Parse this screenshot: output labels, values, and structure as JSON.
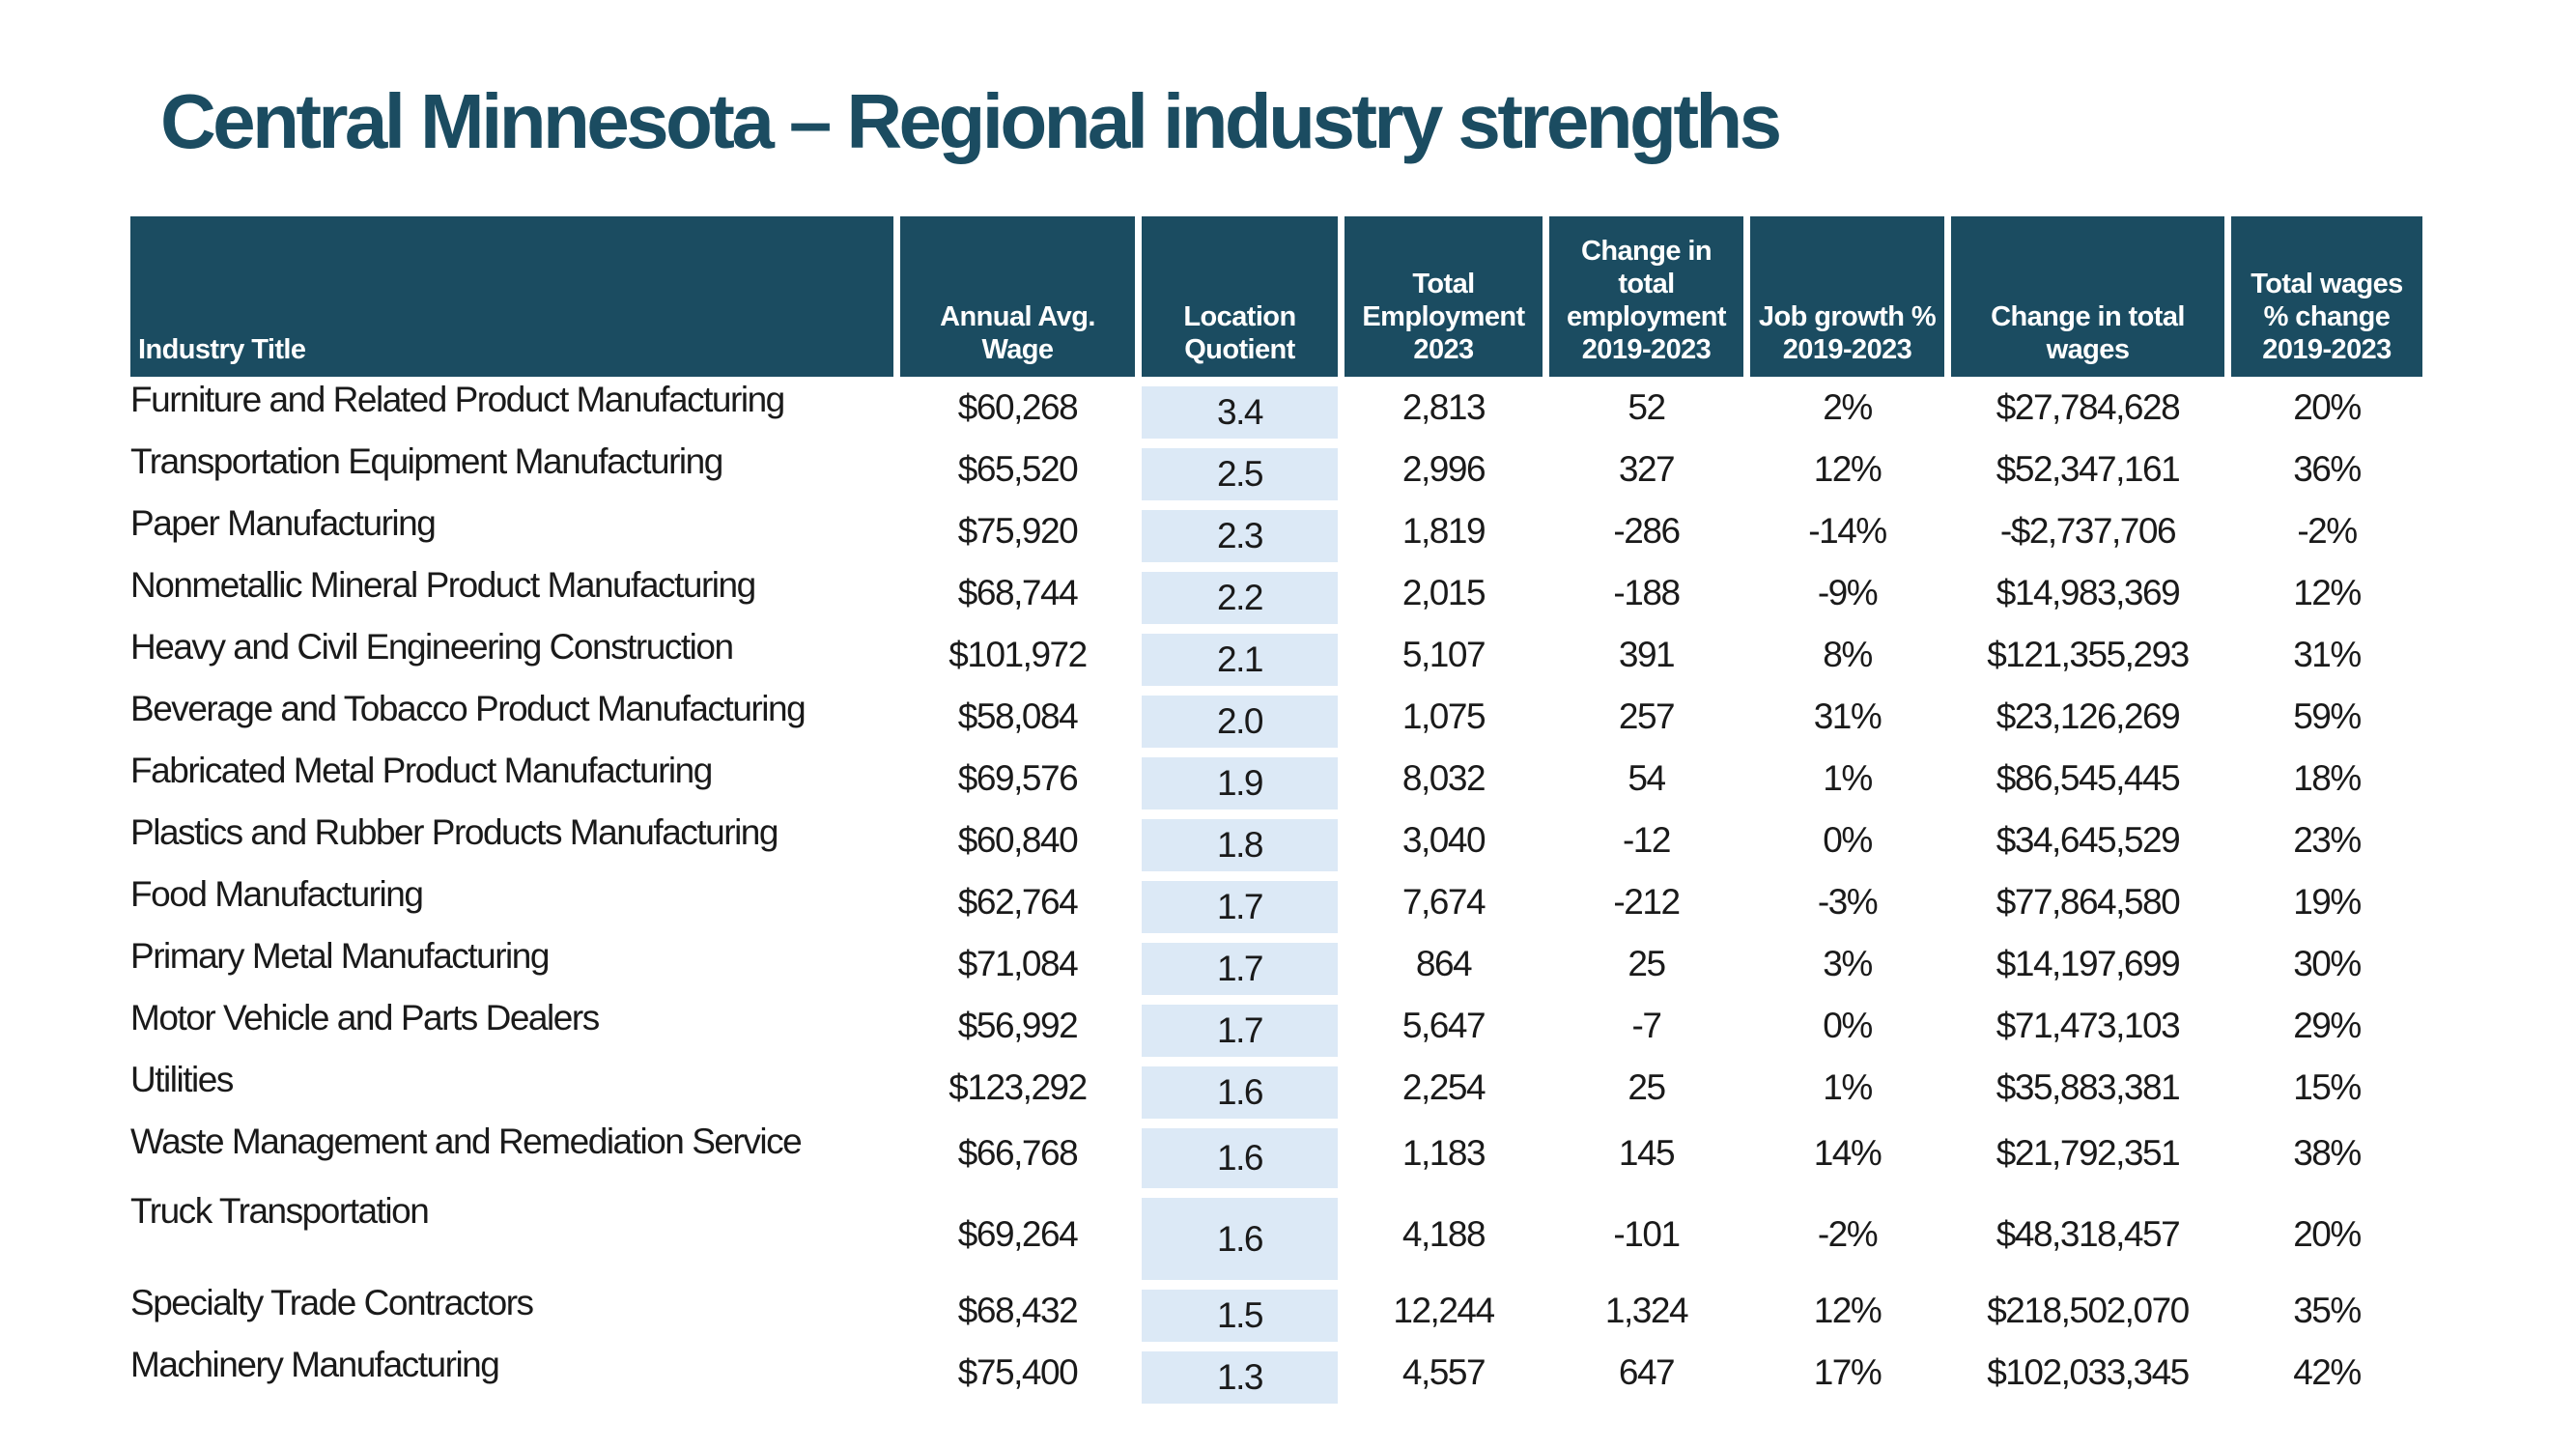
{
  "page": {
    "title": "Central Minnesota – Regional industry strengths"
  },
  "colors": {
    "header_background": "#1B4C61",
    "title_text": "#1B4C61",
    "header_text": "#FFFFFF",
    "highlight_column": "#DCE9F6",
    "body_text": "#1A1A1A"
  },
  "chart_data": {
    "type": "table",
    "title": "Central Minnesota – Regional industry strengths",
    "columns": [
      "Industry Title",
      "Annual Avg.\nWage",
      "Location\nQuotient",
      "Total\nEmployment\n2023",
      "Change in\ntotal\nemployment\n2019-2023",
      "Job growth %\n2019-2023",
      "Change in total\nwages",
      "Total wages\n% change\n2019-2023"
    ],
    "rows": [
      [
        "Furniture and Related Product Manufacturing",
        "$60,268",
        "3.4",
        "2,813",
        "52",
        "2%",
        "$27,784,628",
        "20%"
      ],
      [
        "Transportation Equipment Manufacturing",
        "$65,520",
        "2.5",
        "2,996",
        "327",
        "12%",
        "$52,347,161",
        "36%"
      ],
      [
        "Paper Manufacturing",
        "$75,920",
        "2.3",
        "1,819",
        "-286",
        "-14%",
        "-$2,737,706",
        "-2%"
      ],
      [
        "Nonmetallic Mineral Product Manufacturing",
        "$68,744",
        "2.2",
        "2,015",
        "-188",
        "-9%",
        "$14,983,369",
        "12%"
      ],
      [
        "Heavy and Civil Engineering Construction",
        "$101,972",
        "2.1",
        "5,107",
        "391",
        "8%",
        "$121,355,293",
        "31%"
      ],
      [
        "Beverage and Tobacco Product Manufacturing",
        "$58,084",
        "2.0",
        "1,075",
        "257",
        "31%",
        "$23,126,269",
        "59%"
      ],
      [
        "Fabricated Metal Product Manufacturing",
        "$69,576",
        "1.9",
        "8,032",
        "54",
        "1%",
        "$86,545,445",
        "18%"
      ],
      [
        "Plastics and Rubber Products Manufacturing",
        "$60,840",
        "1.8",
        "3,040",
        "-12",
        "0%",
        "$34,645,529",
        "23%"
      ],
      [
        "Food Manufacturing",
        "$62,764",
        "1.7",
        "7,674",
        "-212",
        "-3%",
        "$77,864,580",
        "19%"
      ],
      [
        "Primary Metal Manufacturing",
        "$71,084",
        "1.7",
        "864",
        "25",
        "3%",
        "$14,197,699",
        "30%"
      ],
      [
        "Motor Vehicle and Parts Dealers",
        "$56,992",
        "1.7",
        "5,647",
        "-7",
        "0%",
        "$71,473,103",
        "29%"
      ],
      [
        "Utilities",
        "$123,292",
        "1.6",
        "2,254",
        "25",
        "1%",
        "$35,883,381",
        "15%"
      ],
      [
        "Waste Management and Remediation Service",
        "$66,768",
        "1.6",
        "1,183",
        "145",
        "14%",
        "$21,792,351",
        "38%"
      ],
      [
        "Truck Transportation",
        "$69,264",
        "1.6",
        "4,188",
        "-101",
        "-2%",
        "$48,318,457",
        "20%"
      ],
      [
        "Specialty Trade Contractors",
        "$68,432",
        "1.5",
        "12,244",
        "1,324",
        "12%",
        "$218,502,070",
        "35%"
      ],
      [
        "Machinery Manufacturing",
        "$75,400",
        "1.3",
        "4,557",
        "647",
        "17%",
        "$102,033,345",
        "42%"
      ]
    ]
  }
}
